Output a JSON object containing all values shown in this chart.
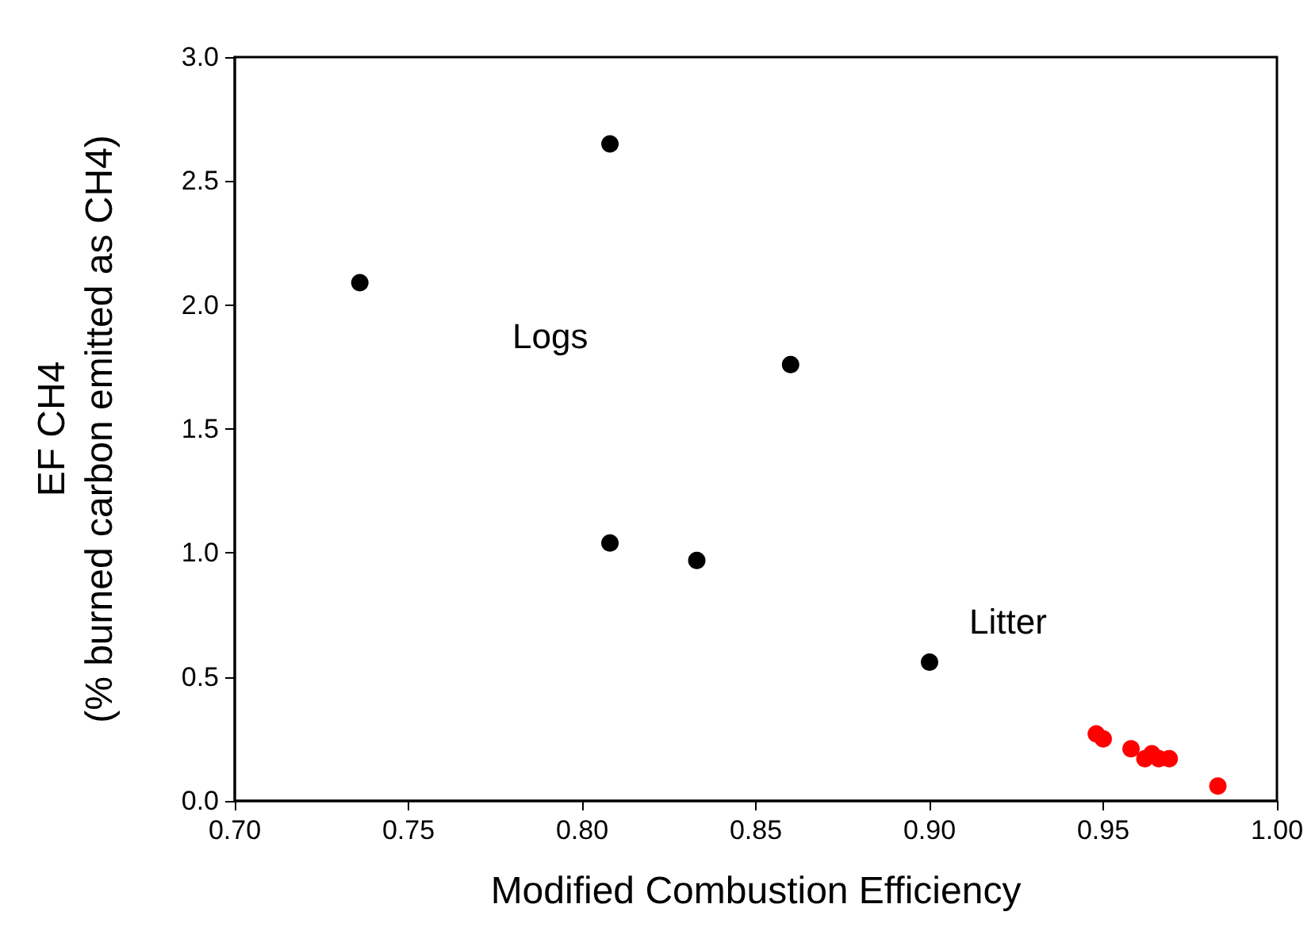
{
  "chart_data": {
    "type": "scatter",
    "xlabel": "Modified Combustion Efficiency",
    "ylabel": "EF CH4\n(% burned carbon emitted as CH4)",
    "series": [
      {
        "color": "#000000",
        "x": [
          0.736,
          0.808,
          0.86,
          0.808,
          0.833,
          0.9
        ],
        "values": [
          2.09,
          2.65,
          1.76,
          1.04,
          0.97,
          0.56
        ]
      },
      {
        "color": "#ff0000",
        "x": [
          0.948,
          0.95,
          0.958,
          0.962,
          0.964,
          0.966,
          0.969,
          0.983
        ],
        "values": [
          0.27,
          0.25,
          0.21,
          0.17,
          0.19,
          0.17,
          0.17,
          0.06
        ]
      }
    ],
    "annotations": [
      "Logs",
      "Litter"
    ],
    "xlim": [
      0.7,
      1.0
    ],
    "xticks": [
      {
        "value": 0.7,
        "label": "0.70"
      },
      {
        "value": 0.75,
        "label": "0.75"
      },
      {
        "value": 0.8,
        "label": "0.80"
      },
      {
        "value": 0.85,
        "label": "0.85"
      },
      {
        "value": 0.9,
        "label": "0.90"
      },
      {
        "value": 0.95,
        "label": "0.95"
      },
      {
        "value": 1.0,
        "label": "1.00"
      }
    ],
    "ylim": [
      0,
      3
    ],
    "yticks": [
      {
        "value": 0,
        "label": "0.0"
      },
      {
        "value": 0.5,
        "label": "0.5"
      },
      {
        "value": 1,
        "label": "1.0"
      },
      {
        "value": 1.5,
        "label": "1.5"
      },
      {
        "value": 2,
        "label": "2.0"
      },
      {
        "value": 2.5,
        "label": "2.5"
      },
      {
        "value": 3,
        "label": "3.0"
      }
    ],
    "grid": false,
    "marker": "circle"
  }
}
